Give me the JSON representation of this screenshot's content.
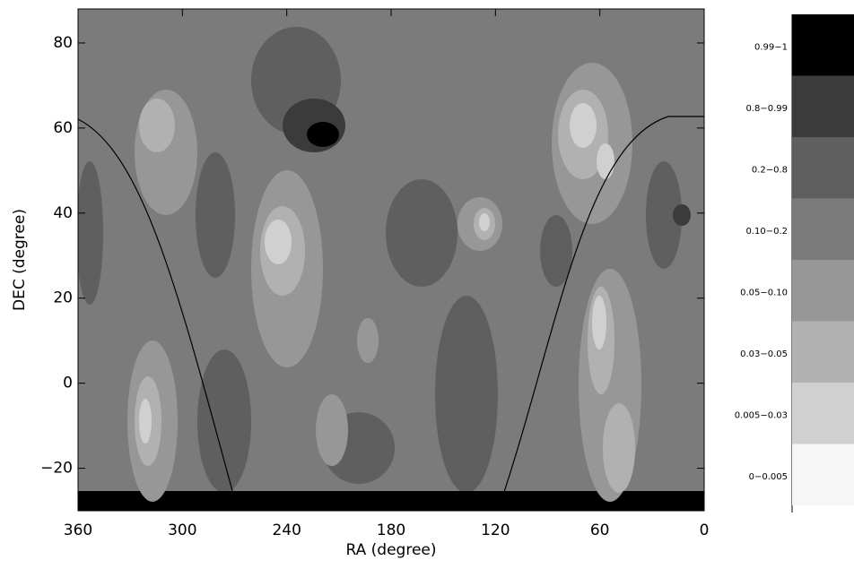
{
  "chart_data": {
    "type": "contour",
    "xlabel": "RA (degree)",
    "ylabel": "DEC (degree)",
    "xlim": [
      360,
      0
    ],
    "ylim": [
      -30,
      88
    ],
    "xticks": [
      360,
      300,
      240,
      180,
      120,
      60,
      0
    ],
    "yticks": [
      {
        "value": -20,
        "label": "−20"
      },
      0,
      20,
      40,
      60,
      80
    ],
    "levels": [
      {
        "label": "0.99−1",
        "color": "#000000"
      },
      {
        "label": "0.8−0.99",
        "color": "#3b3b3b"
      },
      {
        "label": "0.2−0.8",
        "color": "#5f5f5f"
      },
      {
        "label": "0.10−0.2",
        "color": "#7b7b7b"
      },
      {
        "label": "0.05−0.10",
        "color": "#979797"
      },
      {
        "label": "0.03−0.05",
        "color": "#b1b1b1"
      },
      {
        "label": "0.005−0.03",
        "color": "#d0d0d0"
      },
      {
        "label": "0−0.005",
        "color": "#f6f6f6"
      }
    ]
  }
}
